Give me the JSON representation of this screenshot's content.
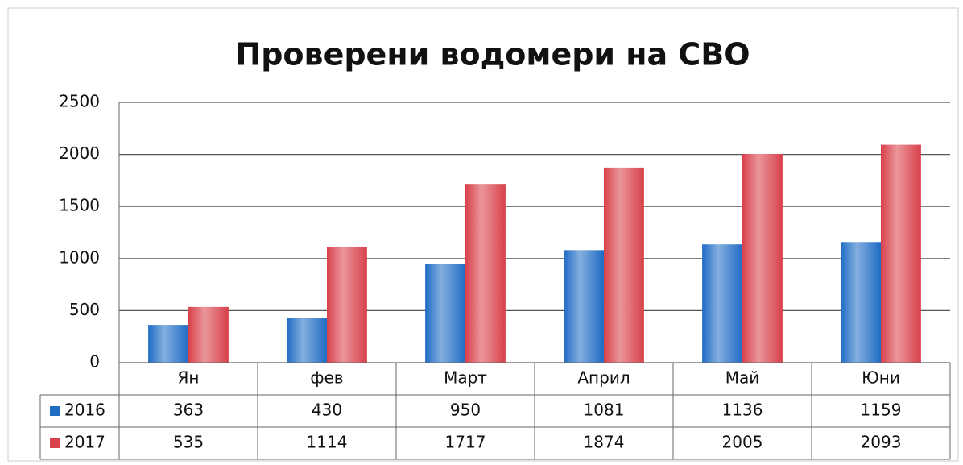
{
  "chart_data": {
    "type": "bar",
    "title": "Проверени водомери на СВО",
    "categories": [
      "Ян",
      "фев",
      "Март",
      "Април",
      "Май",
      "Юни"
    ],
    "series": [
      {
        "name": "2016",
        "color": "#1f6cc4",
        "values": [
          363,
          430,
          950,
          1081,
          1136,
          1159
        ]
      },
      {
        "name": "2017",
        "color": "#d8404a",
        "values": [
          535,
          1114,
          1717,
          1874,
          2005,
          2093
        ]
      }
    ],
    "ylim": [
      0,
      2500
    ],
    "yticks": [
      0,
      500,
      1000,
      1500,
      2000,
      2500
    ],
    "grid": true
  }
}
